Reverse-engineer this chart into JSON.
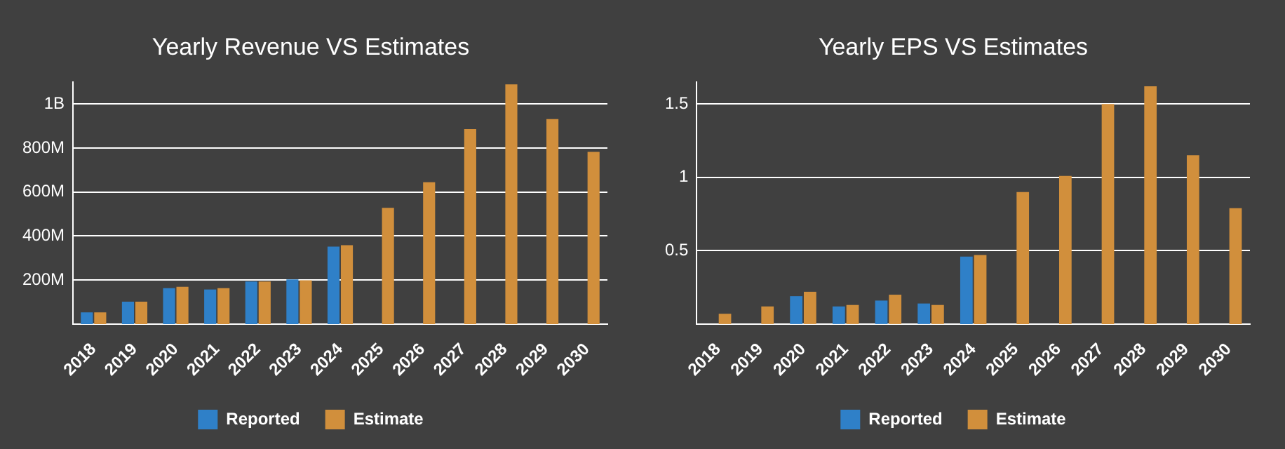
{
  "chart_data": [
    {
      "type": "bar",
      "title": "Yearly Revenue VS Estimates",
      "categories": [
        "2018",
        "2019",
        "2020",
        "2021",
        "2022",
        "2023",
        "2024",
        "2025",
        "2026",
        "2027",
        "2028",
        "2029",
        "2030"
      ],
      "series": [
        {
          "name": "Reported",
          "color": "#2f80c8",
          "values": [
            53000000,
            102000000,
            163000000,
            157000000,
            193000000,
            203000000,
            352000000,
            null,
            null,
            null,
            null,
            null,
            null
          ]
        },
        {
          "name": "Estimate",
          "color": "#d18f3c",
          "values": [
            53000000,
            102000000,
            169000000,
            163000000,
            193000000,
            199000000,
            358000000,
            528000000,
            644000000,
            886000000,
            1089000000,
            931000000,
            782000000
          ]
        }
      ],
      "ylim": [
        0,
        1100000000
      ],
      "yticks": [
        {
          "value": 200000000,
          "label": "200M"
        },
        {
          "value": 400000000,
          "label": "400M"
        },
        {
          "value": 600000000,
          "label": "600M"
        },
        {
          "value": 800000000,
          "label": "800M"
        },
        {
          "value": 1000000000,
          "label": "1B"
        }
      ],
      "grid": "y",
      "legend": "bottom"
    },
    {
      "type": "bar",
      "title": "Yearly EPS VS Estimates",
      "categories": [
        "2018",
        "2019",
        "2020",
        "2021",
        "2022",
        "2023",
        "2024",
        "2025",
        "2026",
        "2027",
        "2028",
        "2029",
        "2030"
      ],
      "series": [
        {
          "name": "Reported",
          "color": "#2f80c8",
          "values": [
            null,
            null,
            0.19,
            0.12,
            0.16,
            0.14,
            0.46,
            null,
            null,
            null,
            null,
            null,
            null
          ]
        },
        {
          "name": "Estimate",
          "color": "#d18f3c",
          "values": [
            0.07,
            0.12,
            0.22,
            0.13,
            0.2,
            0.13,
            0.47,
            0.9,
            1.01,
            1.5,
            1.62,
            1.15,
            0.79
          ]
        }
      ],
      "ylim": [
        0,
        1.65
      ],
      "yticks": [
        0.5,
        1,
        1.5
      ],
      "grid": "y",
      "legend": "bottom"
    }
  ]
}
